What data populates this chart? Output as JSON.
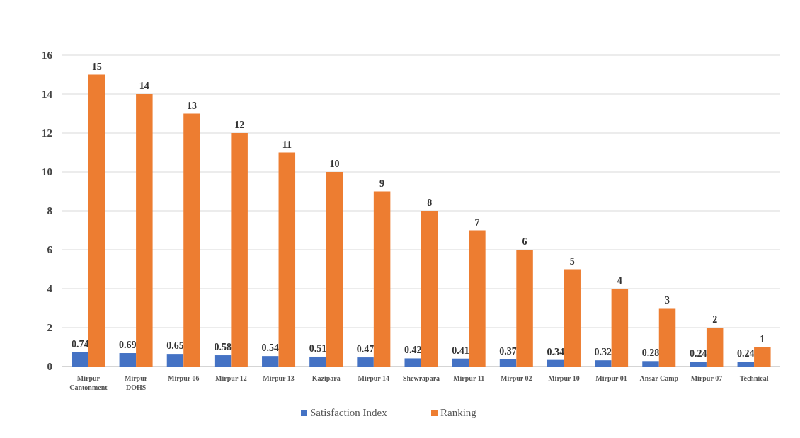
{
  "chart_data": {
    "type": "bar",
    "categories": [
      "Mirpur Cantonment",
      "Mirpur DOHS",
      "Mirpur 06",
      "Mirpur 12",
      "Mirpur 13",
      "Kazipara",
      "Mirpur 14",
      "Shewrapara",
      "Mirpur 11",
      "Mirpur 02",
      "Mirpur 10",
      "Mirpur 01",
      "Ansar Camp",
      "Mirpur 07",
      "Technical"
    ],
    "series": [
      {
        "name": "Satisfaction Index",
        "color": "#4472c4",
        "values": [
          0.74,
          0.69,
          0.65,
          0.58,
          0.54,
          0.51,
          0.47,
          0.42,
          0.41,
          0.37,
          0.34,
          0.32,
          0.28,
          0.24,
          0.24
        ]
      },
      {
        "name": "Ranking",
        "color": "#ed7d31",
        "values": [
          15,
          14,
          13,
          12,
          11,
          10,
          9,
          8,
          7,
          6,
          5,
          4,
          3,
          2,
          1
        ]
      }
    ],
    "ylim": [
      0,
      16
    ],
    "yticks": [
      0,
      2,
      4,
      6,
      8,
      10,
      12,
      14,
      16
    ],
    "grid": "y",
    "legend": "bottom",
    "data_labels": true
  }
}
